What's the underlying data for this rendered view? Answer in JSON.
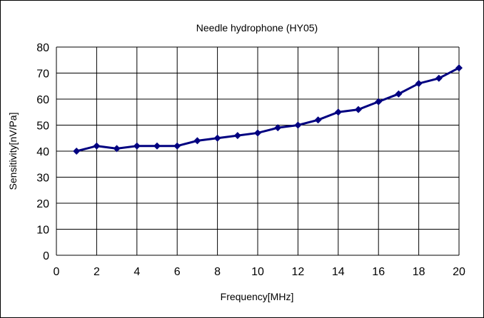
{
  "chart_data": {
    "type": "line",
    "title": "Needle hydrophone (HY05)",
    "xlabel": "Frequency[MHz]",
    "ylabel": "Sensitivity[nV/Pa]",
    "xlim": [
      0,
      20
    ],
    "ylim": [
      0,
      80
    ],
    "xticks": [
      0,
      2,
      4,
      6,
      8,
      10,
      12,
      14,
      16,
      18,
      20
    ],
    "yticks": [
      0,
      10,
      20,
      30,
      40,
      50,
      60,
      70,
      80
    ],
    "grid": true,
    "legend": "none",
    "series": [
      {
        "color": "#000080",
        "marker": "diamond",
        "x": [
          1,
          2,
          3,
          4,
          5,
          6,
          7,
          8,
          9,
          10,
          11,
          12,
          13,
          14,
          15,
          16,
          17,
          18,
          19,
          20
        ],
        "y": [
          40,
          42,
          41,
          42,
          42,
          42,
          44,
          45,
          46,
          47,
          49,
          50,
          52,
          55,
          56,
          59,
          62,
          66,
          68,
          72
        ]
      }
    ]
  }
}
